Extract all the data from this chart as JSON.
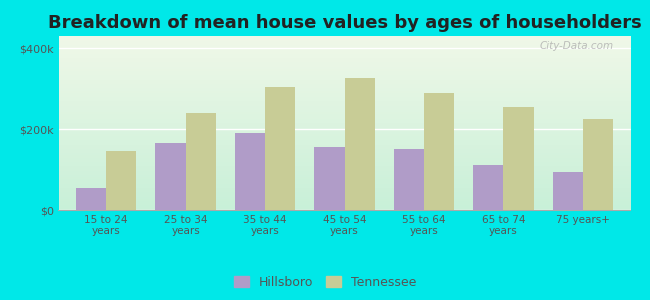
{
  "title": "Breakdown of mean house values by ages of householders",
  "categories": [
    "15 to 24\nyears",
    "25 to 34\nyears",
    "35 to 44\nyears",
    "45 to 54\nyears",
    "55 to 64\nyears",
    "65 to 74\nyears",
    "75 years+"
  ],
  "hillsboro": [
    55000,
    165000,
    190000,
    155000,
    150000,
    110000,
    95000
  ],
  "tennessee": [
    145000,
    240000,
    305000,
    325000,
    290000,
    255000,
    225000
  ],
  "hillsboro_color": "#b09cc8",
  "tennessee_color": "#c8cc96",
  "background_top": "#f0f8e8",
  "background_bottom": "#c8f0d8",
  "outer_background": "#00e8e8",
  "ytick_vals": [
    0,
    200000,
    400000
  ],
  "ylim": [
    0,
    430000
  ],
  "legend_labels": [
    "Hillsboro",
    "Tennessee"
  ],
  "title_fontsize": 13,
  "bar_width": 0.38,
  "watermark": "City-Data.com"
}
